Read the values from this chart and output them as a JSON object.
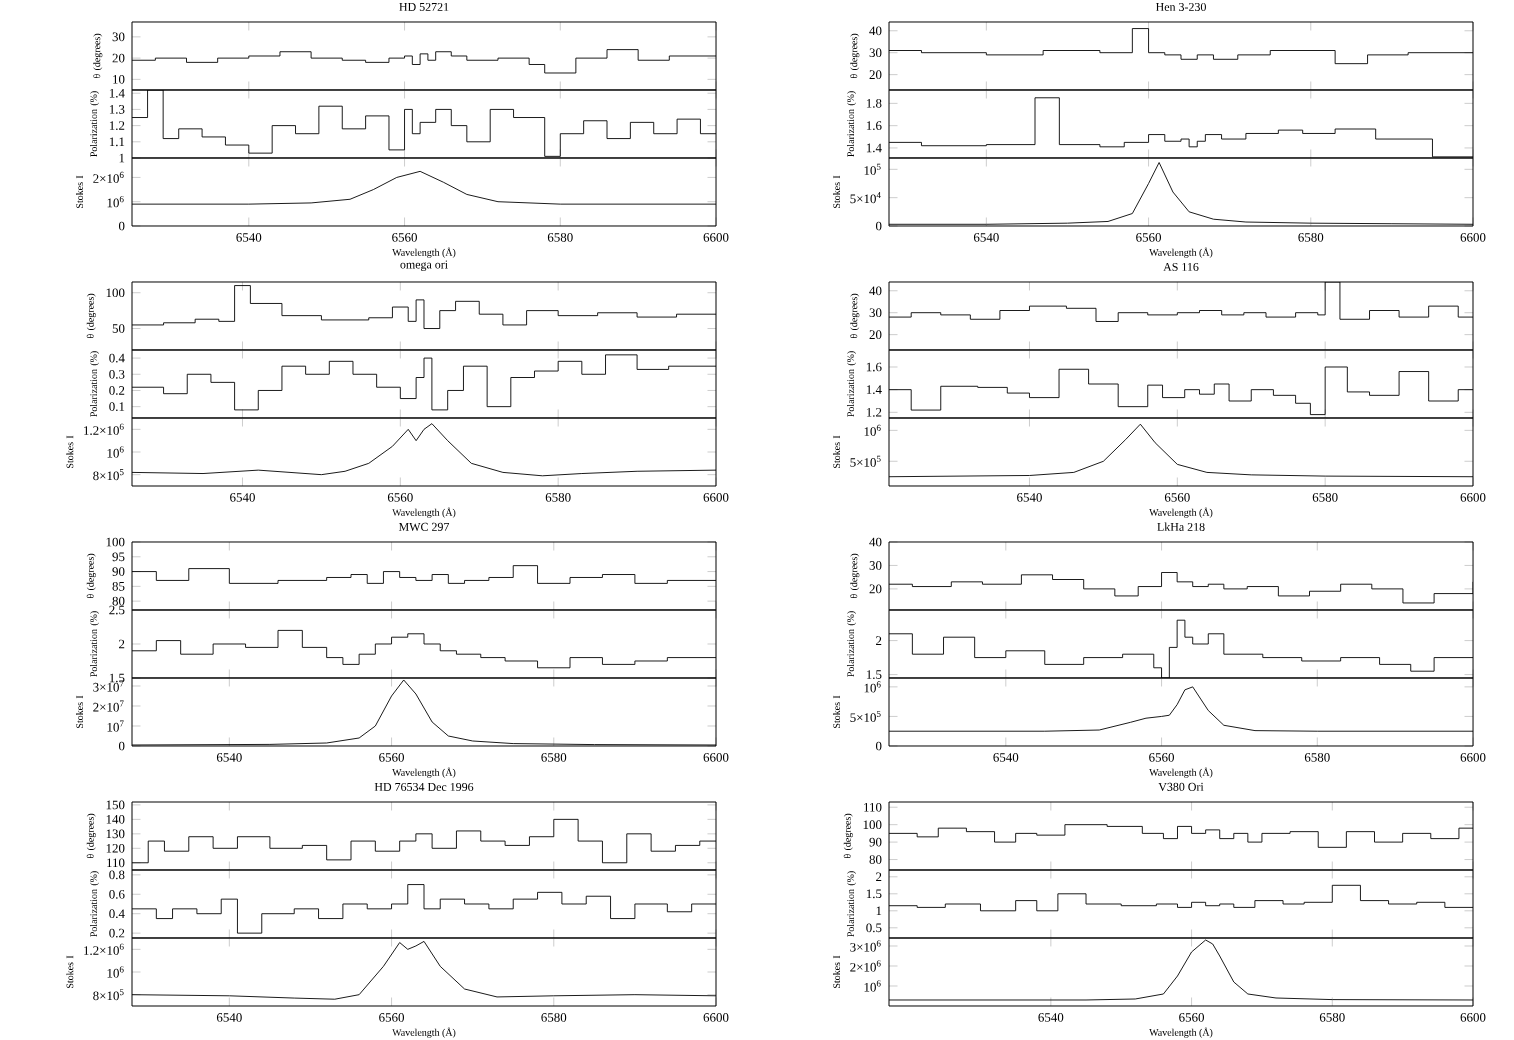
{
  "chart_data": [
    {
      "type": "step",
      "title": "Hen 3-230",
      "ylabel": "θ (degrees)",
      "color": "#000000",
      "xlim": [
        6528,
        6600
      ],
      "xticks": [
        6540,
        6560,
        6580,
        6600
      ],
      "ylim": [
        13,
        44
      ],
      "yticks": [
        20,
        30,
        40
      ],
      "tick_labels": "y",
      "x": [
        6528,
        6532,
        6540,
        6547,
        6554,
        6558,
        6560,
        6562,
        6564,
        6566,
        6568,
        6571,
        6575,
        6580,
        6583,
        6587,
        6592,
        6600
      ],
      "values": [
        31,
        30,
        29,
        31,
        30,
        41,
        30,
        29,
        27,
        29,
        27,
        29,
        31,
        31,
        25,
        29,
        30,
        30
      ]
    },
    {
      "type": "step",
      "ylabel": "Polarization (%)",
      "color": "#000000",
      "xlim": [
        6528,
        6600
      ],
      "xticks": [
        6540,
        6560,
        6580,
        6600
      ],
      "ylim": [
        1.31,
        1.92
      ],
      "yticks": [
        1.4,
        1.6,
        1.8
      ],
      "tick_labels": "y",
      "x": [
        6528,
        6532,
        6540,
        6546,
        6549,
        6554,
        6557,
        6560,
        6562,
        6564,
        6565,
        6566,
        6567,
        6569,
        6572,
        6576,
        6579,
        6583,
        6588,
        6595,
        6600
      ],
      "values": [
        1.45,
        1.42,
        1.43,
        1.85,
        1.43,
        1.41,
        1.45,
        1.52,
        1.46,
        1.48,
        1.41,
        1.46,
        1.52,
        1.48,
        1.53,
        1.56,
        1.53,
        1.57,
        1.48,
        1.32,
        1.32
      ]
    },
    {
      "type": "line",
      "ylabel": "Stokes I",
      "xlabel": "Wavelength (Å)",
      "color": "#000000",
      "xlim": [
        6528,
        6600
      ],
      "xticks": [
        6540,
        6560,
        6580,
        6600
      ],
      "ylim": [
        0,
        120000
      ],
      "yticks": [
        0,
        {
          "value": 50000,
          "label": "5×10$^{4}$"
        },
        {
          "value": 100000,
          "label": "10$^{5}$"
        }
      ],
      "x": [
        6528,
        6540,
        6550,
        6555,
        6558,
        6560,
        6561.3,
        6563,
        6565,
        6568,
        6572,
        6580,
        6590,
        6600
      ],
      "values": [
        3000,
        3000,
        5000,
        8000,
        22000,
        75000,
        112000,
        60000,
        25000,
        12000,
        7000,
        5000,
        4000,
        3000
      ]
    },
    {
      "type": "step",
      "title": "AS 116",
      "ylabel": "θ (degrees)",
      "color": "#000000",
      "xlim": [
        6521,
        6600
      ],
      "xticks": [
        6540,
        6560,
        6580,
        6600
      ],
      "ylim": [
        13,
        44
      ],
      "yticks": [
        20,
        30,
        40
      ],
      "tick_labels": "y",
      "x": [
        6521,
        6524,
        6528,
        6532,
        6536,
        6540,
        6545,
        6549,
        6552,
        6556,
        6560,
        6563,
        6566,
        6569,
        6572,
        6576,
        6579,
        6580,
        6582,
        6586,
        6590,
        6594,
        6598,
        6600
      ],
      "values": [
        28,
        30,
        29,
        27,
        31,
        33,
        32,
        26,
        30,
        29,
        30,
        31,
        29,
        30,
        28,
        30,
        29,
        44,
        27,
        31,
        28,
        33,
        28,
        28
      ]
    },
    {
      "type": "step",
      "ylabel": "Polarization (%)",
      "color": "#000000",
      "xlim": [
        6521,
        6600
      ],
      "xticks": [
        6540,
        6560,
        6580,
        6600
      ],
      "ylim": [
        1.15,
        1.75
      ],
      "yticks": [
        1.2,
        1.4,
        1.6
      ],
      "tick_labels": "y",
      "x": [
        6521,
        6524,
        6528,
        6533,
        6537,
        6540,
        6544,
        6548,
        6552,
        6556,
        6558,
        6561,
        6563,
        6565,
        6567,
        6570,
        6573,
        6576,
        6578,
        6580,
        6583,
        6586,
        6590,
        6594,
        6598,
        6600
      ],
      "values": [
        1.4,
        1.22,
        1.43,
        1.42,
        1.37,
        1.33,
        1.58,
        1.45,
        1.25,
        1.44,
        1.33,
        1.4,
        1.36,
        1.45,
        1.3,
        1.4,
        1.35,
        1.28,
        1.18,
        1.6,
        1.38,
        1.35,
        1.56,
        1.3,
        1.4,
        1.4
      ]
    },
    {
      "type": "line",
      "ylabel": "Stokes I",
      "xlabel": "Wavelength (Å)",
      "color": "#000000",
      "xlim": [
        6521,
        6600
      ],
      "xticks": [
        6540,
        6560,
        6580,
        6600
      ],
      "ylim": [
        100000,
        1200000
      ],
      "yticks": [
        {
          "value": 500000,
          "label": "5×10$^{5}$"
        },
        {
          "value": 1000000,
          "label": "10$^{6}$"
        }
      ],
      "x": [
        6521,
        6540,
        6546,
        6550,
        6553,
        6555,
        6557,
        6560,
        6564,
        6570,
        6580,
        6600
      ],
      "values": [
        250000,
        270000,
        320000,
        500000,
        850000,
        1100000,
        800000,
        450000,
        320000,
        280000,
        260000,
        250000
      ]
    },
    {
      "type": "step",
      "title": "LkHa 218",
      "ylabel": "θ (degrees)",
      "color": "#000000",
      "xlim": [
        6525,
        6600
      ],
      "xticks": [
        6540,
        6560,
        6580,
        6600
      ],
      "ylim": [
        11,
        40
      ],
      "yticks": [
        20,
        30,
        40
      ],
      "tick_labels": "y",
      "x": [
        6525,
        6528,
        6533,
        6537,
        6542,
        6546,
        6550,
        6554,
        6557,
        6560,
        6562,
        6564,
        6566,
        6568,
        6571,
        6575,
        6579,
        6583,
        6587,
        6591,
        6595,
        6600
      ],
      "values": [
        22,
        21,
        23,
        22,
        26,
        24,
        20,
        17,
        21,
        27,
        23,
        21,
        22,
        20,
        21,
        17,
        19,
        22,
        20,
        14,
        18,
        23
      ]
    },
    {
      "type": "step",
      "ylabel": "Polarization (%)",
      "color": "#000000",
      "xlim": [
        6525,
        6600
      ],
      "xticks": [
        6540,
        6560,
        6580,
        6600
      ],
      "ylim": [
        1.45,
        2.45
      ],
      "yticks": [
        1.5,
        2
      ],
      "tick_labels": "y",
      "x": [
        6525,
        6528,
        6532,
        6536,
        6540,
        6545,
        6550,
        6555,
        6559,
        6560,
        6561,
        6562,
        6563,
        6564,
        6566,
        6568,
        6573,
        6578,
        6583,
        6588,
        6592,
        6595,
        6600
      ],
      "values": [
        2.1,
        1.8,
        2.05,
        1.75,
        1.85,
        1.65,
        1.75,
        1.8,
        1.6,
        1.45,
        1.9,
        2.3,
        2.05,
        1.95,
        2.1,
        1.8,
        1.75,
        1.7,
        1.75,
        1.65,
        1.55,
        1.75,
        1.75
      ]
    },
    {
      "type": "line",
      "ylabel": "Stokes I",
      "xlabel": "Wavelength (Å)",
      "color": "#000000",
      "xlim": [
        6525,
        6600
      ],
      "xticks": [
        6540,
        6560,
        6580,
        6600
      ],
      "ylim": [
        0,
        1150000
      ],
      "yticks": [
        0,
        {
          "value": 500000,
          "label": "5×10$^{5}$"
        },
        {
          "value": 1000000,
          "label": "10$^{6}$"
        }
      ],
      "x": [
        6525,
        6545,
        6552,
        6556,
        6558,
        6560,
        6561,
        6562,
        6563,
        6564,
        6566,
        6568,
        6572,
        6580,
        6600
      ],
      "values": [
        250000,
        250000,
        270000,
        400000,
        470000,
        500000,
        520000,
        700000,
        950000,
        1000000,
        600000,
        350000,
        260000,
        250000,
        250000
      ]
    },
    {
      "type": "step",
      "title": "V380 Ori",
      "ylabel": "θ (degrees)",
      "color": "#000000",
      "xlim": [
        6517,
        6600
      ],
      "xticks": [
        6540,
        6560,
        6580,
        6600
      ],
      "ylim": [
        74,
        113
      ],
      "yticks": [
        80,
        90,
        100,
        110
      ],
      "tick_labels": "y",
      "x": [
        6517,
        6521,
        6524,
        6528,
        6532,
        6535,
        6538,
        6542,
        6548,
        6553,
        6556,
        6558,
        6560,
        6562,
        6564,
        6566,
        6568,
        6570,
        6574,
        6578,
        6582,
        6586,
        6590,
        6594,
        6598,
        6600
      ],
      "values": [
        95,
        93,
        98,
        96,
        90,
        95,
        94,
        100,
        99,
        95,
        92,
        99,
        95,
        97,
        92,
        95,
        90,
        95,
        96,
        87,
        96,
        90,
        95,
        92,
        98,
        98
      ]
    },
    {
      "type": "step",
      "ylabel": "Polarization (%)",
      "color": "#000000",
      "xlim": [
        6517,
        6600
      ],
      "xticks": [
        6540,
        6560,
        6580,
        6600
      ],
      "ylim": [
        0.2,
        2.2
      ],
      "yticks": [
        0.5,
        1,
        1.5,
        2
      ],
      "tick_labels": "y",
      "x": [
        6517,
        6521,
        6525,
        6530,
        6535,
        6538,
        6541,
        6545,
        6550,
        6555,
        6558,
        6560,
        6562,
        6564,
        6566,
        6569,
        6573,
        6576,
        6580,
        6584,
        6588,
        6592,
        6596,
        6600
      ],
      "values": [
        1.15,
        1.1,
        1.2,
        1.0,
        1.3,
        1.0,
        1.5,
        1.2,
        1.15,
        1.2,
        1.1,
        1.25,
        1.15,
        1.2,
        1.1,
        1.3,
        1.2,
        1.25,
        1.75,
        1.3,
        1.2,
        1.25,
        1.1,
        1.1
      ]
    },
    {
      "type": "line",
      "ylabel": "Stokes I",
      "xlabel": "Wavelength (Å)",
      "color": "#000000",
      "xlim": [
        6517,
        6600
      ],
      "xticks": [
        6540,
        6560,
        6580,
        6600
      ],
      "ylim": [
        0,
        3400000
      ],
      "yticks": [
        {
          "value": 1000000,
          "label": "10$^{6}$"
        },
        {
          "value": 2000000,
          "label": "2×10$^{6}$"
        },
        {
          "value": 3000000,
          "label": "3×10$^{6}$"
        }
      ],
      "x": [
        6517,
        6545,
        6552,
        6556,
        6558,
        6560,
        6562,
        6563,
        6564,
        6566,
        6568,
        6572,
        6580,
        6600
      ],
      "values": [
        300000,
        300000,
        350000,
        600000,
        1500000,
        2700000,
        3300000,
        3100000,
        2500000,
        1200000,
        600000,
        400000,
        320000,
        300000
      ]
    },
    {
      "type": "step",
      "title": "HD 52721",
      "ylabel": "θ (degrees)",
      "color": "#000000",
      "xlim": [
        6525,
        6600
      ],
      "xticks": [
        6540,
        6560,
        6580,
        6600
      ],
      "ylim": [
        5,
        37
      ],
      "yticks": [
        10,
        20,
        30
      ],
      "tick_labels": "y",
      "x": [
        6525,
        6528,
        6532,
        6536,
        6540,
        6544,
        6548,
        6552,
        6555,
        6558,
        6560,
        6561,
        6562,
        6563,
        6564,
        6566,
        6568,
        6572,
        6576,
        6578,
        6582,
        6586,
        6590,
        6594,
        6600
      ],
      "values": [
        19,
        20,
        18,
        20,
        21,
        23,
        20,
        19,
        18,
        20,
        21,
        17,
        22,
        19,
        23,
        21,
        19,
        20,
        17,
        13,
        20,
        24,
        19,
        21,
        21
      ]
    },
    {
      "type": "step",
      "ylabel": "Polarization (%)",
      "color": "#000000",
      "xlim": [
        6525,
        6600
      ],
      "xticks": [
        6540,
        6560,
        6580,
        6600
      ],
      "ylim": [
        1.0,
        1.42
      ],
      "yticks": [
        1,
        1.1,
        1.2,
        1.3,
        1.4
      ],
      "tick_labels": "y",
      "x": [
        6525,
        6527,
        6529,
        6531,
        6534,
        6537,
        6540,
        6543,
        6546,
        6549,
        6552,
        6555,
        6558,
        6560,
        6561,
        6562,
        6564,
        6566,
        6568,
        6571,
        6574,
        6578,
        6580,
        6583,
        6586,
        6589,
        6592,
        6595,
        6598,
        6600
      ],
      "values": [
        1.25,
        1.42,
        1.12,
        1.18,
        1.13,
        1.08,
        1.03,
        1.2,
        1.15,
        1.32,
        1.18,
        1.26,
        1.05,
        1.3,
        1.15,
        1.22,
        1.3,
        1.2,
        1.1,
        1.3,
        1.25,
        1.01,
        1.15,
        1.23,
        1.12,
        1.22,
        1.15,
        1.24,
        1.15,
        1.15
      ]
    },
    {
      "type": "line",
      "ylabel": "Stokes I",
      "xlabel": "Wavelength (Å)",
      "color": "#000000",
      "xlim": [
        6525,
        6600
      ],
      "xticks": [
        6540,
        6560,
        6580,
        6600
      ],
      "ylim": [
        0,
        2800000
      ],
      "yticks": [
        0,
        {
          "value": 1000000,
          "label": "10$^{6}$"
        },
        {
          "value": 2000000,
          "label": "2×10$^{6}$"
        }
      ],
      "x": [
        6525,
        6540,
        6548,
        6553,
        6556,
        6559,
        6562,
        6565,
        6568,
        6572,
        6580,
        6600
      ],
      "values": [
        900000,
        900000,
        950000,
        1100000,
        1500000,
        2000000,
        2250000,
        1800000,
        1300000,
        1000000,
        900000,
        900000
      ]
    },
    {
      "type": "step",
      "title": "omega ori",
      "ylabel": "θ (degrees)",
      "color": "#000000",
      "xlim": [
        6526,
        6600
      ],
      "xticks": [
        6540,
        6560,
        6580,
        6600
      ],
      "ylim": [
        20,
        115
      ],
      "yticks": [
        50,
        100
      ],
      "tick_labels": "y",
      "x": [
        6526,
        6530,
        6534,
        6537,
        6539,
        6541,
        6545,
        6550,
        6556,
        6559,
        6561,
        6562,
        6563,
        6565,
        6567,
        6570,
        6573,
        6576,
        6580,
        6585,
        6590,
        6595,
        6600
      ],
      "values": [
        55,
        58,
        63,
        60,
        110,
        85,
        68,
        62,
        65,
        80,
        60,
        90,
        50,
        75,
        88,
        70,
        55,
        75,
        68,
        72,
        66,
        70,
        70
      ]
    },
    {
      "type": "step",
      "ylabel": "Polarization (%)",
      "color": "#000000",
      "xlim": [
        6526,
        6600
      ],
      "xticks": [
        6540,
        6560,
        6580,
        6600
      ],
      "ylim": [
        0.03,
        0.45
      ],
      "yticks": [
        0.1,
        0.2,
        0.3,
        0.4
      ],
      "tick_labels": "y",
      "x": [
        6526,
        6530,
        6533,
        6536,
        6539,
        6542,
        6545,
        6548,
        6551,
        6554,
        6557,
        6560,
        6562,
        6563,
        6564,
        6566,
        6568,
        6571,
        6574,
        6577,
        6580,
        6583,
        6586,
        6590,
        6594,
        6600
      ],
      "values": [
        0.22,
        0.18,
        0.3,
        0.25,
        0.08,
        0.2,
        0.35,
        0.3,
        0.38,
        0.3,
        0.22,
        0.15,
        0.28,
        0.4,
        0.08,
        0.2,
        0.35,
        0.1,
        0.28,
        0.32,
        0.38,
        0.3,
        0.42,
        0.33,
        0.35,
        0.35
      ]
    },
    {
      "type": "line",
      "ylabel": "Stokes I",
      "xlabel": "Wavelength (Å)",
      "color": "#000000",
      "xlim": [
        6526,
        6600
      ],
      "xticks": [
        6540,
        6560,
        6580,
        6600
      ],
      "ylim": [
        700000,
        1300000
      ],
      "yticks": [
        {
          "value": 800000,
          "label": "8×10$^{5}$"
        },
        {
          "value": 1000000,
          "label": "10$^{6}$"
        },
        {
          "value": 1200000,
          "label": "1.2×10$^{6}$"
        }
      ],
      "x": [
        6526,
        6535,
        6542,
        6550,
        6553,
        6556,
        6559,
        6561,
        6562,
        6563,
        6564,
        6566,
        6569,
        6573,
        6578,
        6583,
        6590,
        6600
      ],
      "values": [
        820000,
        810000,
        840000,
        800000,
        830000,
        900000,
        1050000,
        1200000,
        1100000,
        1200000,
        1250000,
        1100000,
        900000,
        820000,
        790000,
        810000,
        830000,
        840000
      ]
    },
    {
      "type": "step",
      "title": "MWC 297",
      "ylabel": "θ (degrees)",
      "color": "#000000",
      "xlim": [
        6528,
        6600
      ],
      "xticks": [
        6540,
        6560,
        6580,
        6600
      ],
      "ylim": [
        77,
        100
      ],
      "yticks": [
        80,
        85,
        90,
        95,
        100
      ],
      "tick_labels": "y",
      "x": [
        6528,
        6531,
        6535,
        6540,
        6546,
        6552,
        6555,
        6557,
        6559,
        6561,
        6563,
        6565,
        6567,
        6569,
        6572,
        6575,
        6578,
        6582,
        6586,
        6590,
        6594,
        6600
      ],
      "values": [
        90,
        87,
        91,
        86,
        87,
        88,
        89,
        86,
        90,
        88,
        87,
        89,
        86,
        87,
        88,
        92,
        86,
        88,
        89,
        86,
        87,
        87
      ]
    },
    {
      "type": "step",
      "ylabel": "Polarization (%)",
      "color": "#000000",
      "xlim": [
        6528,
        6600
      ],
      "xticks": [
        6540,
        6560,
        6580,
        6600
      ],
      "ylim": [
        1.5,
        2.5
      ],
      "yticks": [
        1.5,
        2,
        2.5
      ],
      "tick_labels": "y",
      "x": [
        6528,
        6531,
        6534,
        6538,
        6542,
        6546,
        6549,
        6552,
        6554,
        6556,
        6558,
        6560,
        6562,
        6564,
        6566,
        6568,
        6571,
        6574,
        6578,
        6582,
        6586,
        6590,
        6594,
        6600
      ],
      "values": [
        1.9,
        2.05,
        1.85,
        2.0,
        1.95,
        2.2,
        1.95,
        1.8,
        1.7,
        1.85,
        2.0,
        2.1,
        2.15,
        2.0,
        1.9,
        1.85,
        1.8,
        1.75,
        1.65,
        1.8,
        1.7,
        1.75,
        1.8,
        1.8
      ]
    },
    {
      "type": "line",
      "ylabel": "Stokes I",
      "xlabel": "Wavelength (Å)",
      "color": "#000000",
      "xlim": [
        6528,
        6600
      ],
      "xticks": [
        6540,
        6560,
        6580,
        6600
      ],
      "ylim": [
        0,
        34000000
      ],
      "yticks": [
        0,
        {
          "value": 10000000,
          "label": "10$^{7}$"
        },
        {
          "value": 20000000,
          "label": "2×10$^{7}$"
        },
        {
          "value": 30000000,
          "label": "3×10$^{7}$"
        }
      ],
      "x": [
        6528,
        6545,
        6552,
        6556,
        6558,
        6560,
        6561.5,
        6563,
        6565,
        6567,
        6570,
        6575,
        6585,
        6600
      ],
      "values": [
        500000,
        800000,
        1500000,
        4000000,
        10000000,
        25000000,
        33000000,
        26000000,
        12000000,
        5000000,
        2500000,
        1200000,
        700000,
        500000
      ]
    },
    {
      "type": "step",
      "title": "HD 76534 Dec 1996",
      "ylabel": "θ (degrees)",
      "color": "#000000",
      "xlim": [
        6528,
        6600
      ],
      "xticks": [
        6540,
        6560,
        6580,
        6600
      ],
      "ylim": [
        105,
        152
      ],
      "yticks": [
        110,
        120,
        130,
        140,
        150
      ],
      "tick_labels": "y",
      "x": [
        6528,
        6530,
        6532,
        6535,
        6538,
        6541,
        6545,
        6549,
        6552,
        6555,
        6558,
        6561,
        6563,
        6565,
        6568,
        6571,
        6574,
        6577,
        6580,
        6583,
        6586,
        6589,
        6592,
        6595,
        6598,
        6600
      ],
      "values": [
        110,
        125,
        118,
        128,
        120,
        128,
        120,
        122,
        112,
        125,
        118,
        125,
        130,
        120,
        132,
        125,
        122,
        128,
        140,
        125,
        110,
        130,
        118,
        122,
        125,
        125
      ]
    },
    {
      "type": "step",
      "ylabel": "Polarization (%)",
      "color": "#000000",
      "xlim": [
        6528,
        6600
      ],
      "xticks": [
        6540,
        6560,
        6580,
        6600
      ],
      "ylim": [
        0.15,
        0.85
      ],
      "yticks": [
        0.2,
        0.4,
        0.6,
        0.8
      ],
      "tick_labels": "y",
      "x": [
        6528,
        6531,
        6533,
        6536,
        6539,
        6541,
        6544,
        6548,
        6551,
        6554,
        6557,
        6560,
        6562,
        6564,
        6566,
        6569,
        6572,
        6575,
        6578,
        6581,
        6584,
        6587,
        6590,
        6594,
        6597,
        6600
      ],
      "values": [
        0.45,
        0.35,
        0.45,
        0.4,
        0.55,
        0.2,
        0.4,
        0.45,
        0.35,
        0.5,
        0.45,
        0.5,
        0.7,
        0.45,
        0.55,
        0.5,
        0.45,
        0.55,
        0.62,
        0.5,
        0.58,
        0.35,
        0.5,
        0.42,
        0.5,
        0.5
      ]
    },
    {
      "type": "line",
      "ylabel": "Stokes I",
      "xlabel": "Wavelength (Å)",
      "color": "#000000",
      "xlim": [
        6528,
        6600
      ],
      "xticks": [
        6540,
        6560,
        6580,
        6600
      ],
      "ylim": [
        700000,
        1300000
      ],
      "yticks": [
        {
          "value": 800000,
          "label": "8×10$^{5}$"
        },
        {
          "value": 1000000,
          "label": "10$^{6}$"
        },
        {
          "value": 1200000,
          "label": "1.2×10$^{6}$"
        }
      ],
      "x": [
        6528,
        6540,
        6548,
        6553,
        6556,
        6559,
        6561,
        6562,
        6563,
        6564,
        6566,
        6569,
        6573,
        6580,
        6590,
        6600
      ],
      "values": [
        800000,
        790000,
        770000,
        760000,
        800000,
        1050000,
        1260000,
        1200000,
        1230000,
        1270000,
        1050000,
        850000,
        780000,
        790000,
        800000,
        790000
      ]
    }
  ]
}
